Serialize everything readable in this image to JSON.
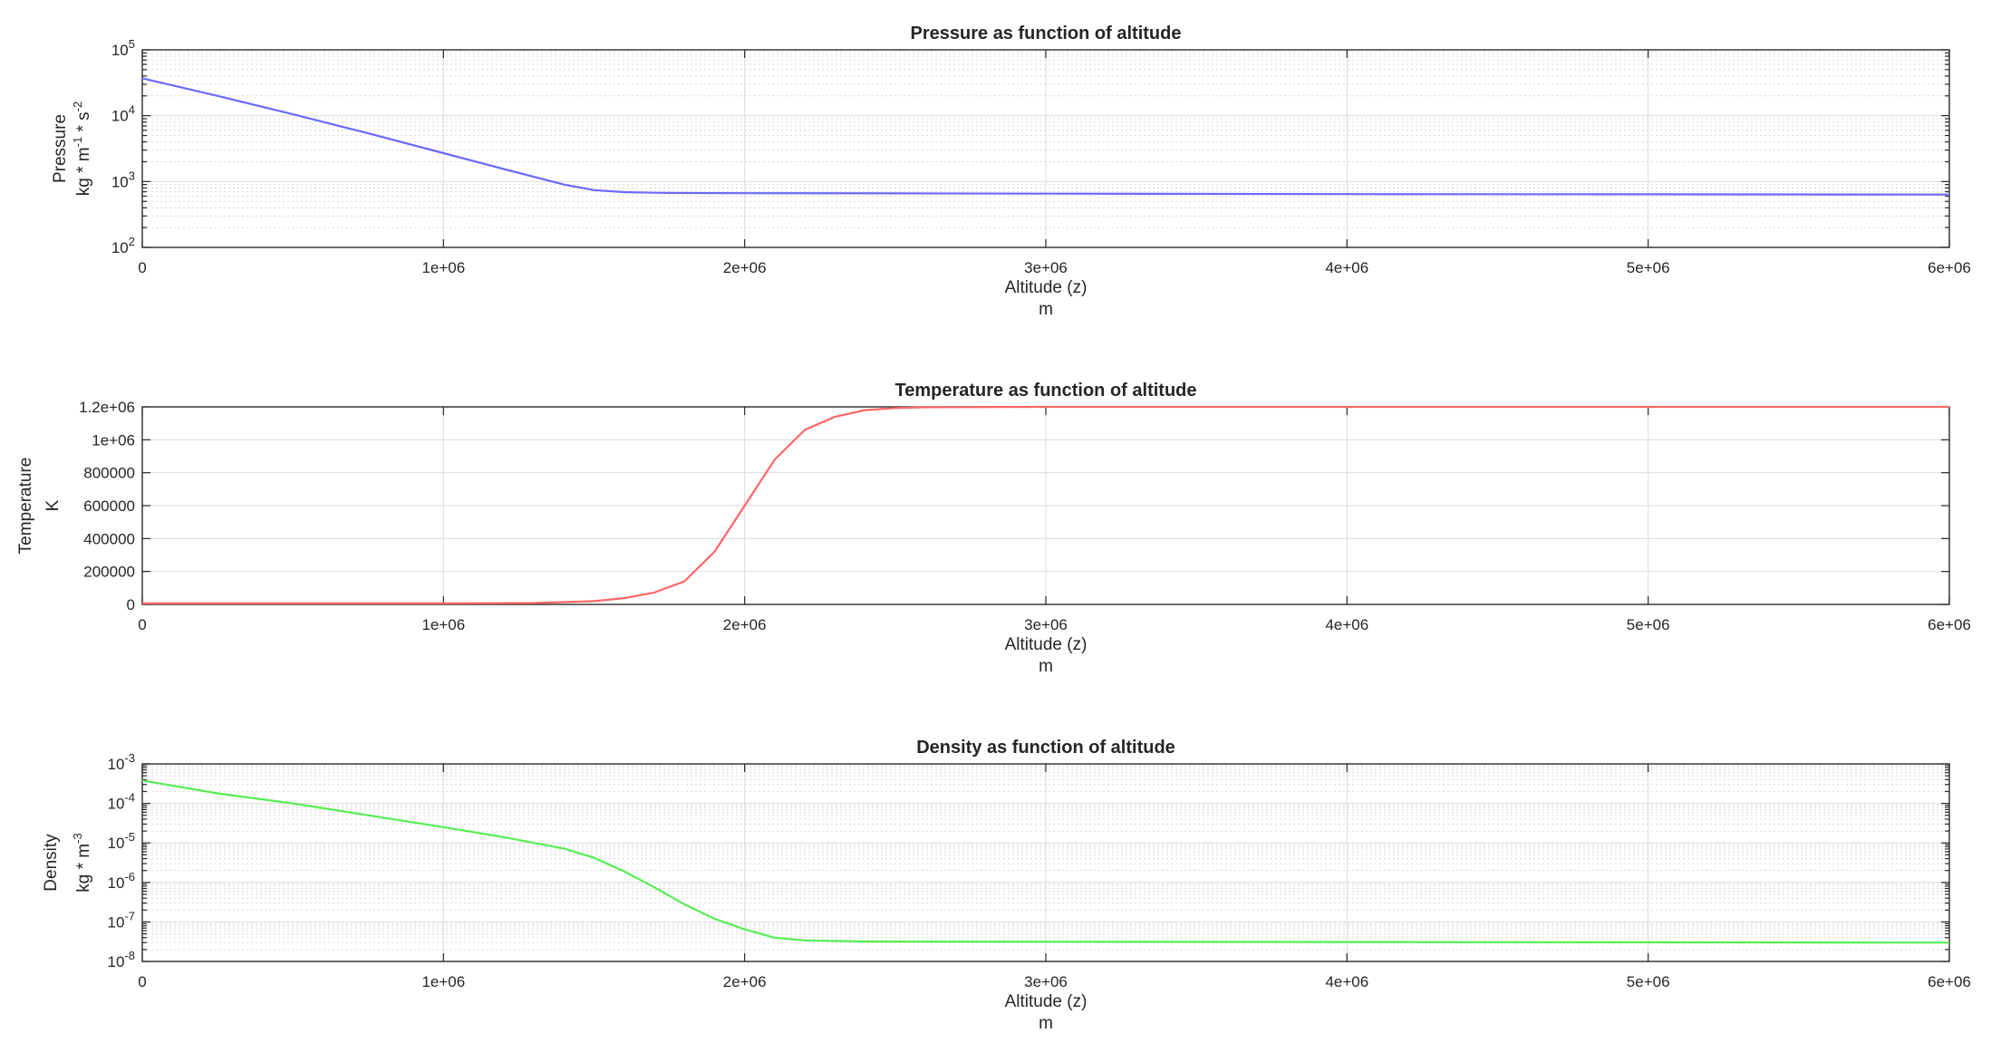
{
  "chart_data": [
    {
      "type": "line",
      "title": "Pressure as function of altitude",
      "xlabel": "Altitude (z)",
      "xunit": "m",
      "ylabel": "Pressure",
      "yunit": {
        "base": "kg * m",
        "exp1": "-1",
        "mid": " * s",
        "exp2": "-2"
      },
      "yscale": "log",
      "xlim": [
        0,
        6000000
      ],
      "ylim": [
        100,
        100000
      ],
      "grid": true,
      "color": "#6a6aff",
      "xticks": [
        {
          "value": 0,
          "label": "0"
        },
        {
          "value": 1000000,
          "label": "1e+06"
        },
        {
          "value": 2000000,
          "label": "2e+06"
        },
        {
          "value": 3000000,
          "label": "3e+06"
        },
        {
          "value": 4000000,
          "label": "4e+06"
        },
        {
          "value": 5000000,
          "label": "5e+06"
        },
        {
          "value": 6000000,
          "label": "6e+06"
        }
      ],
      "yticks": [
        {
          "value": 100,
          "base": "10",
          "exp": "2"
        },
        {
          "value": 1000,
          "base": "10",
          "exp": "3"
        },
        {
          "value": 10000,
          "base": "10",
          "exp": "4"
        },
        {
          "value": 100000,
          "base": "10",
          "exp": "5"
        }
      ],
      "x": [
        0,
        250000,
        500000,
        750000,
        1000000,
        1200000,
        1400000,
        1500000,
        1600000,
        1700000,
        1800000,
        2000000,
        2500000,
        3000000,
        4000000,
        5000000,
        6000000
      ],
      "y": [
        37000,
        20000,
        10500,
        5400,
        2700,
        1550,
        900,
        740,
        690,
        675,
        670,
        665,
        660,
        655,
        645,
        640,
        635
      ]
    },
    {
      "type": "line",
      "title": "Temperature as function of altitude",
      "xlabel": "Altitude (z)",
      "xunit": "m",
      "ylabel": "Temperature",
      "yunit": "K",
      "yscale": "linear",
      "xlim": [
        0,
        6000000
      ],
      "ylim": [
        0,
        1200000
      ],
      "grid": true,
      "color": "#ff6666",
      "xticks": [
        {
          "value": 0,
          "label": "0"
        },
        {
          "value": 1000000,
          "label": "1e+06"
        },
        {
          "value": 2000000,
          "label": "2e+06"
        },
        {
          "value": 3000000,
          "label": "3e+06"
        },
        {
          "value": 4000000,
          "label": "4e+06"
        },
        {
          "value": 5000000,
          "label": "5e+06"
        },
        {
          "value": 6000000,
          "label": "6e+06"
        }
      ],
      "yticks": [
        {
          "value": 0,
          "label": "0"
        },
        {
          "value": 200000,
          "label": "200000"
        },
        {
          "value": 400000,
          "label": "400000"
        },
        {
          "value": 600000,
          "label": "600000"
        },
        {
          "value": 800000,
          "label": "800000"
        },
        {
          "value": 1000000,
          "label": "1e+06"
        },
        {
          "value": 1200000,
          "label": "1.2e+06"
        }
      ],
      "x": [
        0,
        1000000,
        1300000,
        1500000,
        1600000,
        1700000,
        1800000,
        1900000,
        2000000,
        2100000,
        2200000,
        2300000,
        2400000,
        2500000,
        2600000,
        3000000,
        4000000,
        6000000
      ],
      "y": [
        6000,
        6000,
        8000,
        20000,
        38000,
        72000,
        140000,
        320000,
        600000,
        880000,
        1060000,
        1140000,
        1180000,
        1193000,
        1198000,
        1200000,
        1200000,
        1200000
      ]
    },
    {
      "type": "line",
      "title": "Density as function of altitude",
      "xlabel": "Altitude (z)",
      "xunit": "m",
      "ylabel": "Density",
      "yunit": {
        "base": "kg * m",
        "exp1": "-3"
      },
      "yscale": "log",
      "xlim": [
        0,
        6000000
      ],
      "ylim": [
        1e-08,
        0.001
      ],
      "grid": true,
      "color": "#55ee55",
      "xticks": [
        {
          "value": 0,
          "label": "0"
        },
        {
          "value": 1000000,
          "label": "1e+06"
        },
        {
          "value": 2000000,
          "label": "2e+06"
        },
        {
          "value": 3000000,
          "label": "3e+06"
        },
        {
          "value": 4000000,
          "label": "4e+06"
        },
        {
          "value": 5000000,
          "label": "5e+06"
        },
        {
          "value": 6000000,
          "label": "6e+06"
        }
      ],
      "yticks": [
        {
          "value": 1e-08,
          "base": "10",
          "exp": "-8"
        },
        {
          "value": 1e-07,
          "base": "10",
          "exp": "-7"
        },
        {
          "value": 1e-06,
          "base": "10",
          "exp": "-6"
        },
        {
          "value": 1e-05,
          "base": "10",
          "exp": "-5"
        },
        {
          "value": 0.0001,
          "base": "10",
          "exp": "-4"
        },
        {
          "value": 0.001,
          "base": "10",
          "exp": "-3"
        }
      ],
      "x": [
        0,
        250000,
        500000,
        750000,
        1000000,
        1200000,
        1400000,
        1500000,
        1600000,
        1700000,
        1800000,
        1900000,
        2000000,
        2100000,
        2200000,
        2400000,
        3000000,
        4000000,
        5000000,
        6000000
      ],
      "y": [
        0.00038,
        0.00018,
        0.0001,
        5e-05,
        2.5e-05,
        1.4e-05,
        7.2e-06,
        4.2e-06,
        1.9e-06,
        7.5e-07,
        2.8e-07,
        1.2e-07,
        6.5e-08,
        4e-08,
        3.4e-08,
        3.2e-08,
        3.15e-08,
        3.1e-08,
        3.05e-08,
        3e-08
      ]
    }
  ]
}
